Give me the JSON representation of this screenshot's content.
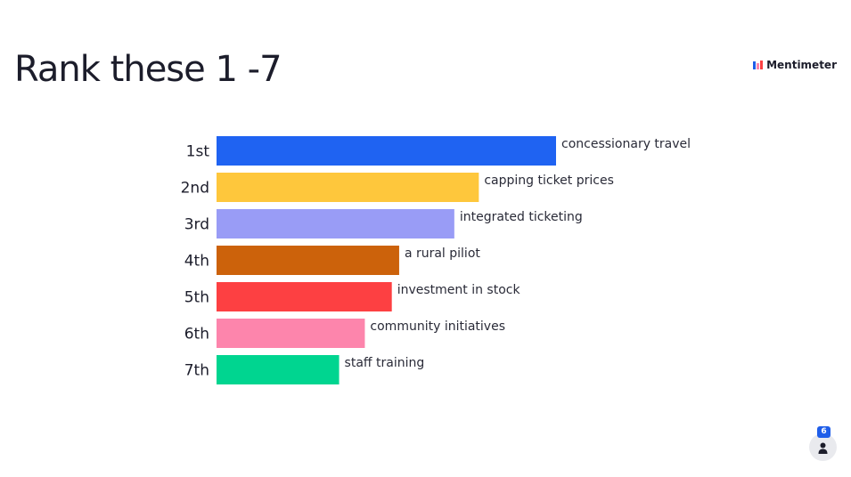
{
  "title": "Rank these 1 -7",
  "brand": {
    "name": "Mentimeter",
    "icon": "mentimeter-logo-icon"
  },
  "participants": {
    "count": "6",
    "icon": "person-icon"
  },
  "colors": {
    "text": "#1c1d2b",
    "badge": "#1f5ee9"
  },
  "chart_data": {
    "type": "bar",
    "orientation": "horizontal",
    "title": "Rank these 1 -7",
    "categories": [
      "1st",
      "2nd",
      "3rd",
      "4th",
      "5th",
      "6th",
      "7th"
    ],
    "labels": [
      "concessionary travel",
      "capping ticket prices",
      "integrated ticketing",
      "a rural piliot",
      "investment in stock",
      "community initiatives",
      "staff training"
    ],
    "values": [
      2.77,
      2.14,
      1.94,
      1.49,
      1.43,
      1.21,
      1.0
    ],
    "colors": [
      "#1f63f2",
      "#fec73c",
      "#999cf6",
      "#cc620b",
      "#fd4042",
      "#fd85ac",
      "#00d590"
    ],
    "xlim": [
      0,
      2.77
    ],
    "grid": false,
    "legend": "none"
  }
}
